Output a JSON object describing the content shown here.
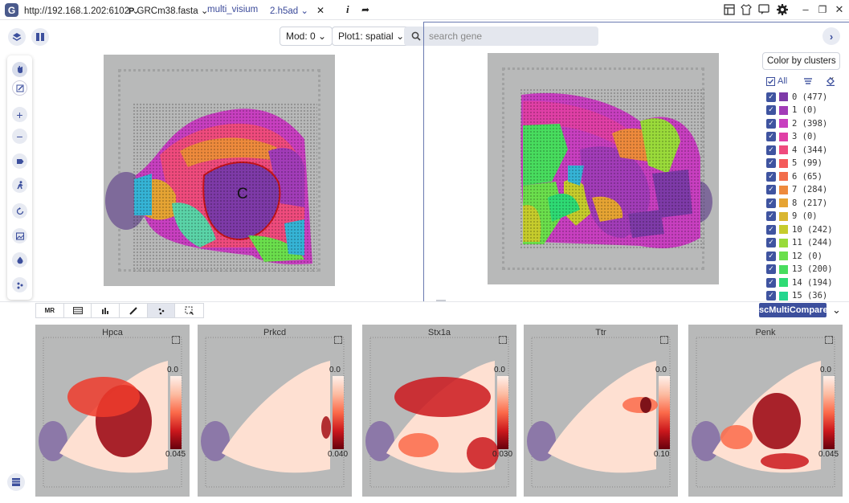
{
  "titlebar": {
    "url": "http://192.168.1.202:6102",
    "reference": "GRCm38.fasta",
    "project": "multi_visium",
    "file": "2.h5ad",
    "close_glyph": "✕"
  },
  "controls": {
    "mod_label": "Mod: 0",
    "plot_label": "Plot1: spatial",
    "search_placeholder": "search gene"
  },
  "annotation_letter": "C",
  "legend": {
    "color_by": "Color by clusters",
    "all_label": "All",
    "clusters": [
      {
        "label": "0 (477)",
        "color": "#7e3aa8"
      },
      {
        "label": "1 (0)",
        "color": "#a23cb8"
      },
      {
        "label": "2 (398)",
        "color": "#c83fc0"
      },
      {
        "label": "3 (0)",
        "color": "#e03fa6"
      },
      {
        "label": "4 (344)",
        "color": "#ef4b7d"
      },
      {
        "label": "5 (99)",
        "color": "#f45a5a"
      },
      {
        "label": "6 (65)",
        "color": "#f26d4b"
      },
      {
        "label": "7 (284)",
        "color": "#ee8a3c"
      },
      {
        "label": "8 (217)",
        "color": "#e6a433"
      },
      {
        "label": "9 (0)",
        "color": "#d9b630"
      },
      {
        "label": "10 (242)",
        "color": "#c6cc2c"
      },
      {
        "label": "11 (244)",
        "color": "#9adb3a"
      },
      {
        "label": "12 (0)",
        "color": "#6bdf4c"
      },
      {
        "label": "13 (200)",
        "color": "#48dd5e"
      },
      {
        "label": "14 (194)",
        "color": "#2edb74"
      },
      {
        "label": "15 (36)",
        "color": "#25d68f"
      }
    ]
  },
  "bottom_toolbar": {
    "mr_label": "MR"
  },
  "compare_button": "scMultiCompare",
  "genes": [
    {
      "name": "Hpca",
      "min": "0.0",
      "max": "0.045"
    },
    {
      "name": "Prkcd",
      "min": "0.0",
      "max": "0.040"
    },
    {
      "name": "Stx1a",
      "min": "0.0",
      "max": "0.030"
    },
    {
      "name": "Ttr",
      "min": "0.0",
      "max": "0.10"
    },
    {
      "name": "Penk",
      "min": "0.0",
      "max": "0.045"
    }
  ]
}
